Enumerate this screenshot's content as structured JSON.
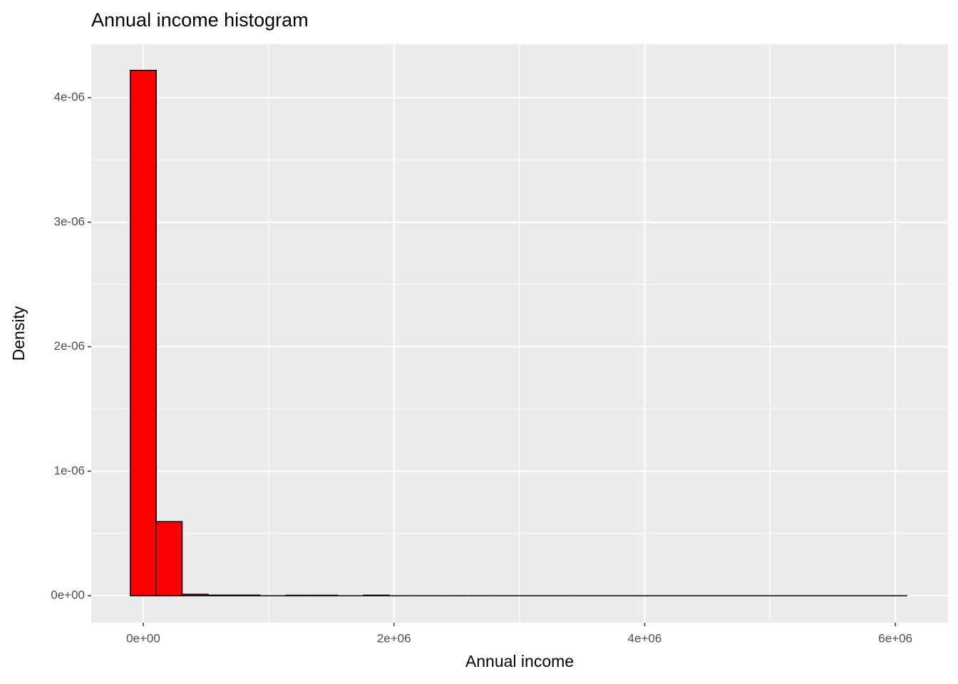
{
  "chart_data": {
    "type": "histogram",
    "title": "Annual income histogram",
    "x_label": "Annual income",
    "y_label": "Density",
    "bins": [
      -103000,
      103600,
      310200,
      516800,
      723400,
      930000,
      1136600,
      1343200,
      1549800,
      1756400,
      1963000,
      2169600,
      2376200,
      2582800,
      2789400,
      2996000,
      3202600,
      3409200,
      3615800,
      3822400,
      4029000,
      4235600,
      4442200,
      4648800,
      4855400,
      5062000,
      5268600,
      5475200,
      5681800,
      5888400,
      6095000
    ],
    "values": [
      4.22e-06,
      5.95e-07,
      1.1e-08,
      5e-09,
      5e-09,
      0,
      3e-09,
      3e-09,
      0,
      4e-09,
      0,
      0,
      0,
      0,
      0,
      0,
      0,
      0,
      0,
      0,
      0,
      0,
      0,
      0,
      0,
      0,
      0,
      0,
      0,
      0
    ],
    "color": "#ff0000",
    "edge_color": "#000000",
    "xlim": [
      -415000,
      6420000
    ],
    "ylim": [
      -2.17e-07,
      4.43e-06
    ],
    "xticks": [
      {
        "value": 0,
        "label": "0e+00"
      },
      {
        "value": 2000000,
        "label": "2e+06"
      },
      {
        "value": 4000000,
        "label": "4e+06"
      },
      {
        "value": 6000000,
        "label": "6e+06"
      }
    ],
    "yticks": [
      {
        "value": 0,
        "label": "0e+00"
      },
      {
        "value": 1e-06,
        "label": "1e-06"
      },
      {
        "value": 2e-06,
        "label": "2e-06"
      },
      {
        "value": 3e-06,
        "label": "3e-06"
      },
      {
        "value": 4e-06,
        "label": "4e-06"
      }
    ],
    "grid": true
  }
}
